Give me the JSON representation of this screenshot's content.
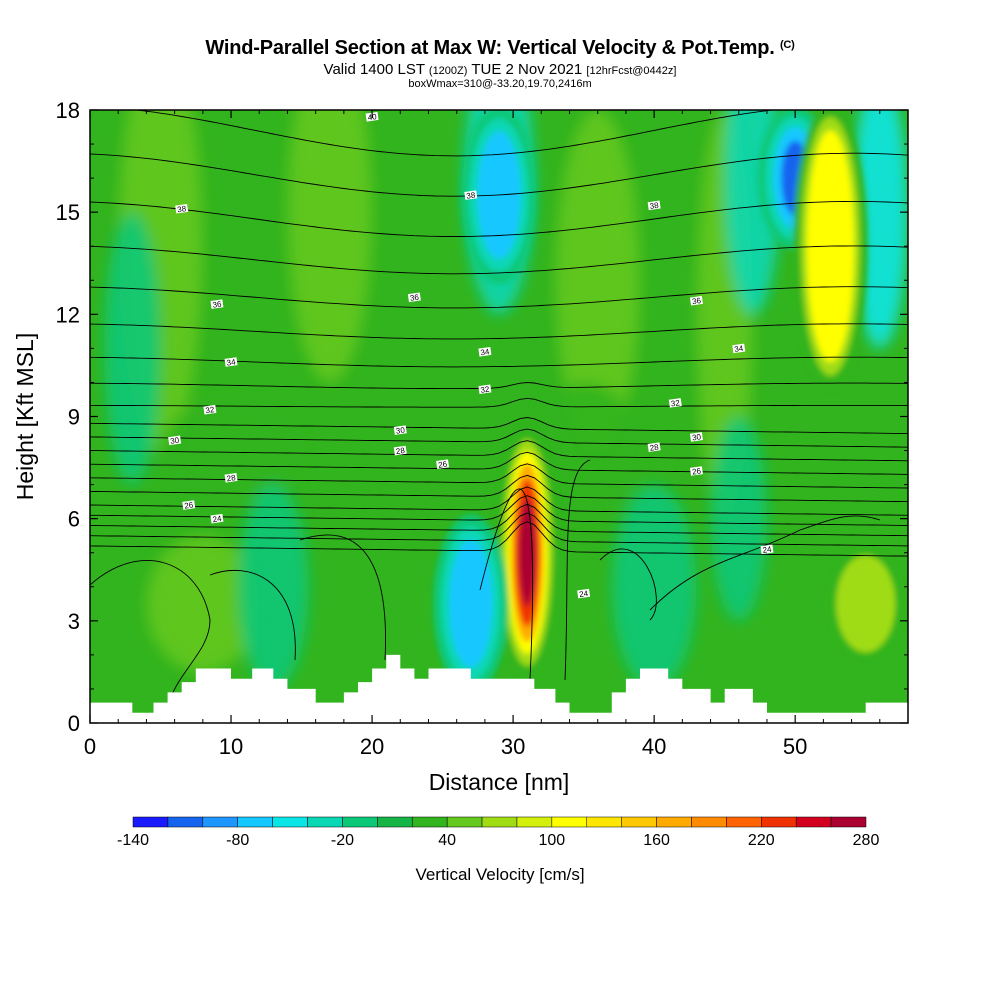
{
  "title": {
    "main": "Wind-Parallel Section at Max W: Vertical Velocity & Pot.Temp.",
    "unit_tag": "(C)",
    "valid_prefix": "Valid 1400 LST",
    "valid_z": "(1200Z)",
    "valid_date": "TUE 2 Nov 2021",
    "forecast": "[12hrFcst@0442z]",
    "box_info": "boxWmax=310@-33.20,19.70,2416m"
  },
  "chart_data": {
    "type": "heatmap",
    "xlabel": "Distance [nm]",
    "ylabel": "Height [Kft MSL]",
    "xlim": [
      0,
      58
    ],
    "ylim": [
      0,
      18
    ],
    "x_ticks": [
      0,
      10,
      20,
      30,
      40,
      50
    ],
    "y_ticks": [
      0,
      3,
      6,
      9,
      12,
      15,
      18
    ],
    "colorbar": {
      "label": "Vertical Velocity [cm/s]",
      "levels": [
        -140,
        -120,
        -100,
        -80,
        -60,
        -40,
        -20,
        0,
        20,
        40,
        60,
        80,
        100,
        120,
        140,
        160,
        180,
        200,
        220,
        240,
        260,
        280
      ],
      "tick_labels": [
        "-140",
        "-80",
        "-20",
        "40",
        "100",
        "160",
        "220",
        "280"
      ],
      "colors": [
        "#1a1aff",
        "#1464f0",
        "#1e96ff",
        "#14c8ff",
        "#0ae6e6",
        "#0ad7b4",
        "#0ac878",
        "#14b446",
        "#32b41e",
        "#64c81e",
        "#a0dc14",
        "#d2f00a",
        "#ffff00",
        "#ffe600",
        "#ffc800",
        "#ffaa00",
        "#ff8c00",
        "#ff6400",
        "#f03200",
        "#d2001e",
        "#aa0032"
      ]
    },
    "velocity_features": [
      {
        "x": 31,
        "z_range": [
          1.5,
          8.5
        ],
        "max": 310,
        "label": "updraft"
      },
      {
        "x": 27,
        "z_range": [
          1,
          6
        ],
        "min": -80
      },
      {
        "x": 29,
        "z_range": [
          13,
          18
        ],
        "min": -90
      },
      {
        "x": 50,
        "z_range": [
          14,
          18
        ],
        "min": -120
      },
      {
        "x": 52.5,
        "z_range": [
          10,
          18
        ],
        "max": 110
      },
      {
        "x": 55,
        "z_range": [
          2,
          5
        ],
        "max": 80
      }
    ],
    "isentropes": [
      {
        "value": "24",
        "label_positions": [
          [
            9,
            6.0
          ],
          [
            35,
            3.8
          ],
          [
            48,
            5.1
          ]
        ]
      },
      {
        "value": "26",
        "label_positions": [
          [
            7,
            6.4
          ],
          [
            43,
            7.4
          ]
        ]
      },
      {
        "value": "26",
        "label_positions": [
          [
            25,
            7.6
          ]
        ]
      },
      {
        "value": "28",
        "label_positions": [
          [
            10,
            7.2
          ],
          [
            22,
            8.0
          ],
          [
            40,
            8.1
          ]
        ]
      },
      {
        "value": "30",
        "label_positions": [
          [
            6,
            8.3
          ],
          [
            22,
            8.6
          ],
          [
            43,
            8.4
          ]
        ]
      },
      {
        "value": "32",
        "label_positions": [
          [
            8.5,
            9.2
          ],
          [
            28,
            9.8
          ],
          [
            41.5,
            9.4
          ]
        ]
      },
      {
        "value": "34",
        "label_positions": [
          [
            10,
            10.6
          ],
          [
            28,
            10.9
          ],
          [
            46,
            11.0
          ]
        ]
      },
      {
        "value": "36",
        "label_positions": [
          [
            9,
            12.3
          ],
          [
            23,
            12.5
          ],
          [
            43,
            12.4
          ]
        ]
      },
      {
        "value": "38",
        "label_positions": [
          [
            6.5,
            15.1
          ],
          [
            27,
            15.5
          ],
          [
            40,
            15.2
          ]
        ]
      },
      {
        "value": "40",
        "label_positions": [
          [
            20,
            17.8
          ]
        ]
      }
    ],
    "terrain": [
      [
        0,
        0.6
      ],
      [
        3,
        0.6
      ],
      [
        3,
        0.3
      ],
      [
        4.5,
        0.3
      ],
      [
        4.5,
        0.6
      ],
      [
        5.5,
        0.6
      ],
      [
        5.5,
        0.9
      ],
      [
        6.5,
        0.9
      ],
      [
        6.5,
        1.2
      ],
      [
        7.5,
        1.2
      ],
      [
        7.5,
        1.6
      ],
      [
        10,
        1.6
      ],
      [
        10,
        1.3
      ],
      [
        11.5,
        1.3
      ],
      [
        11.5,
        1.6
      ],
      [
        13,
        1.6
      ],
      [
        13,
        1.3
      ],
      [
        14,
        1.3
      ],
      [
        14,
        1.0
      ],
      [
        16,
        1.0
      ],
      [
        16,
        0.6
      ],
      [
        18,
        0.6
      ],
      [
        18,
        0.9
      ],
      [
        19,
        0.9
      ],
      [
        19,
        1.2
      ],
      [
        20,
        1.2
      ],
      [
        20,
        1.6
      ],
      [
        21,
        1.6
      ],
      [
        21,
        2.0
      ],
      [
        22,
        2.0
      ],
      [
        22,
        1.6
      ],
      [
        23,
        1.6
      ],
      [
        23,
        1.3
      ],
      [
        24,
        1.3
      ],
      [
        24,
        1.6
      ],
      [
        27,
        1.6
      ],
      [
        27,
        1.3
      ],
      [
        31.5,
        1.3
      ],
      [
        31.5,
        1.0
      ],
      [
        33,
        1.0
      ],
      [
        33,
        0.6
      ],
      [
        34,
        0.6
      ],
      [
        34,
        0.3
      ],
      [
        37,
        0.3
      ],
      [
        37,
        0.9
      ],
      [
        38,
        0.9
      ],
      [
        38,
        1.3
      ],
      [
        39,
        1.3
      ],
      [
        39,
        1.6
      ],
      [
        41,
        1.6
      ],
      [
        41,
        1.3
      ],
      [
        42,
        1.3
      ],
      [
        42,
        1.0
      ],
      [
        44,
        1.0
      ],
      [
        44,
        0.6
      ],
      [
        45,
        0.6
      ],
      [
        45,
        1.0
      ],
      [
        47,
        1.0
      ],
      [
        47,
        0.6
      ],
      [
        48,
        0.6
      ],
      [
        48,
        0.3
      ],
      [
        55,
        0.3
      ],
      [
        55,
        0.6
      ],
      [
        58,
        0.6
      ]
    ]
  }
}
